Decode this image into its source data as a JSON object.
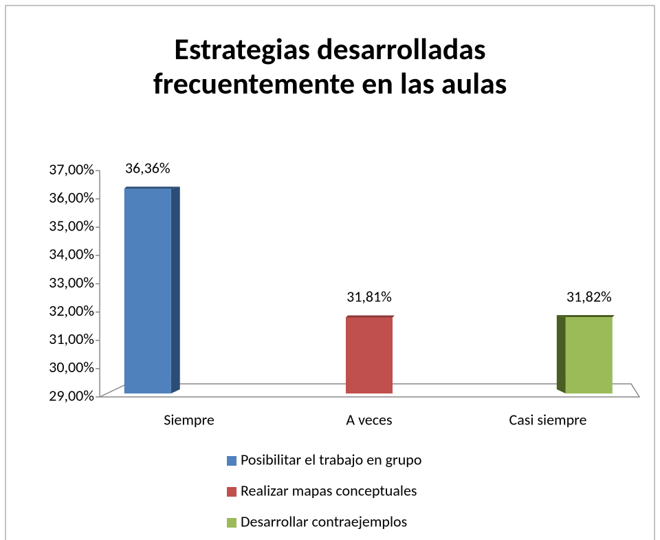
{
  "chart_data": {
    "type": "bar3d",
    "title": "Estrategias desarrolladas frecuentemente en las aulas",
    "categories": [
      "Siempre",
      "A veces",
      "Casi siempre"
    ],
    "series": [
      {
        "name": "Posibilitar el trabajo en grupo",
        "color": "#4f81bd",
        "values": [
          36.36,
          null,
          null
        ],
        "value_labels": [
          "36,36%",
          null,
          null
        ]
      },
      {
        "name": "Realizar mapas conceptuales",
        "color": "#c0504d",
        "values": [
          null,
          31.81,
          null
        ],
        "value_labels": [
          null,
          "31,81%",
          null
        ]
      },
      {
        "name": "Desarrollar contraejemplos",
        "color": "#9bbb59",
        "values": [
          null,
          null,
          31.82
        ],
        "value_labels": [
          null,
          null,
          "31,82%"
        ]
      }
    ],
    "ylim": [
      29,
      37
    ],
    "yticks": [
      {
        "value": 29,
        "label": "29,00%"
      },
      {
        "value": 30,
        "label": "30,00%"
      },
      {
        "value": 31,
        "label": "31,00%"
      },
      {
        "value": 32,
        "label": "32,00%"
      },
      {
        "value": 33,
        "label": "33,00%"
      },
      {
        "value": 34,
        "label": "34,00%"
      },
      {
        "value": 35,
        "label": "35,00%"
      },
      {
        "value": 36,
        "label": "36,00%"
      },
      {
        "value": 37,
        "label": "37,00%"
      }
    ],
    "legend": "bottom"
  }
}
